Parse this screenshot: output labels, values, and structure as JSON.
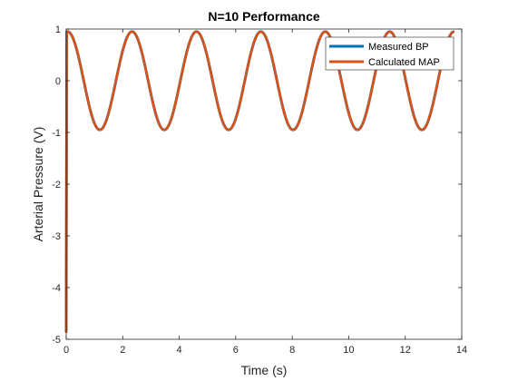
{
  "chart_data": {
    "type": "line",
    "title": "N=10 Performance",
    "xlabel": "Time (s)",
    "ylabel": "Arterial Pressure (V)",
    "xlim": [
      0,
      14
    ],
    "ylim": [
      -5,
      1
    ],
    "xticks": [
      "0",
      "2",
      "4",
      "6",
      "8",
      "10",
      "12",
      "14"
    ],
    "yticks": [
      "-5",
      "-4",
      "-3",
      "-2",
      "-1",
      "0",
      "1"
    ],
    "grid": false,
    "legend_position": "top-right",
    "series": [
      {
        "name": "Measured BP",
        "color": "#0072BD",
        "model": "sine",
        "amplitude": 0.95,
        "period_s": 2.28,
        "phase_peak_s": 0.05,
        "initial_transient": {
          "t": 0.02,
          "y": -4.85
        },
        "x_range": [
          0,
          13.7
        ]
      },
      {
        "name": "Calculated MAP",
        "color": "#D95319",
        "model": "sine",
        "amplitude": 0.95,
        "period_s": 2.28,
        "phase_peak_s": 0.05,
        "initial_transient": {
          "t": 0.02,
          "y": -4.85
        },
        "x_range": [
          0,
          13.7
        ]
      }
    ]
  }
}
